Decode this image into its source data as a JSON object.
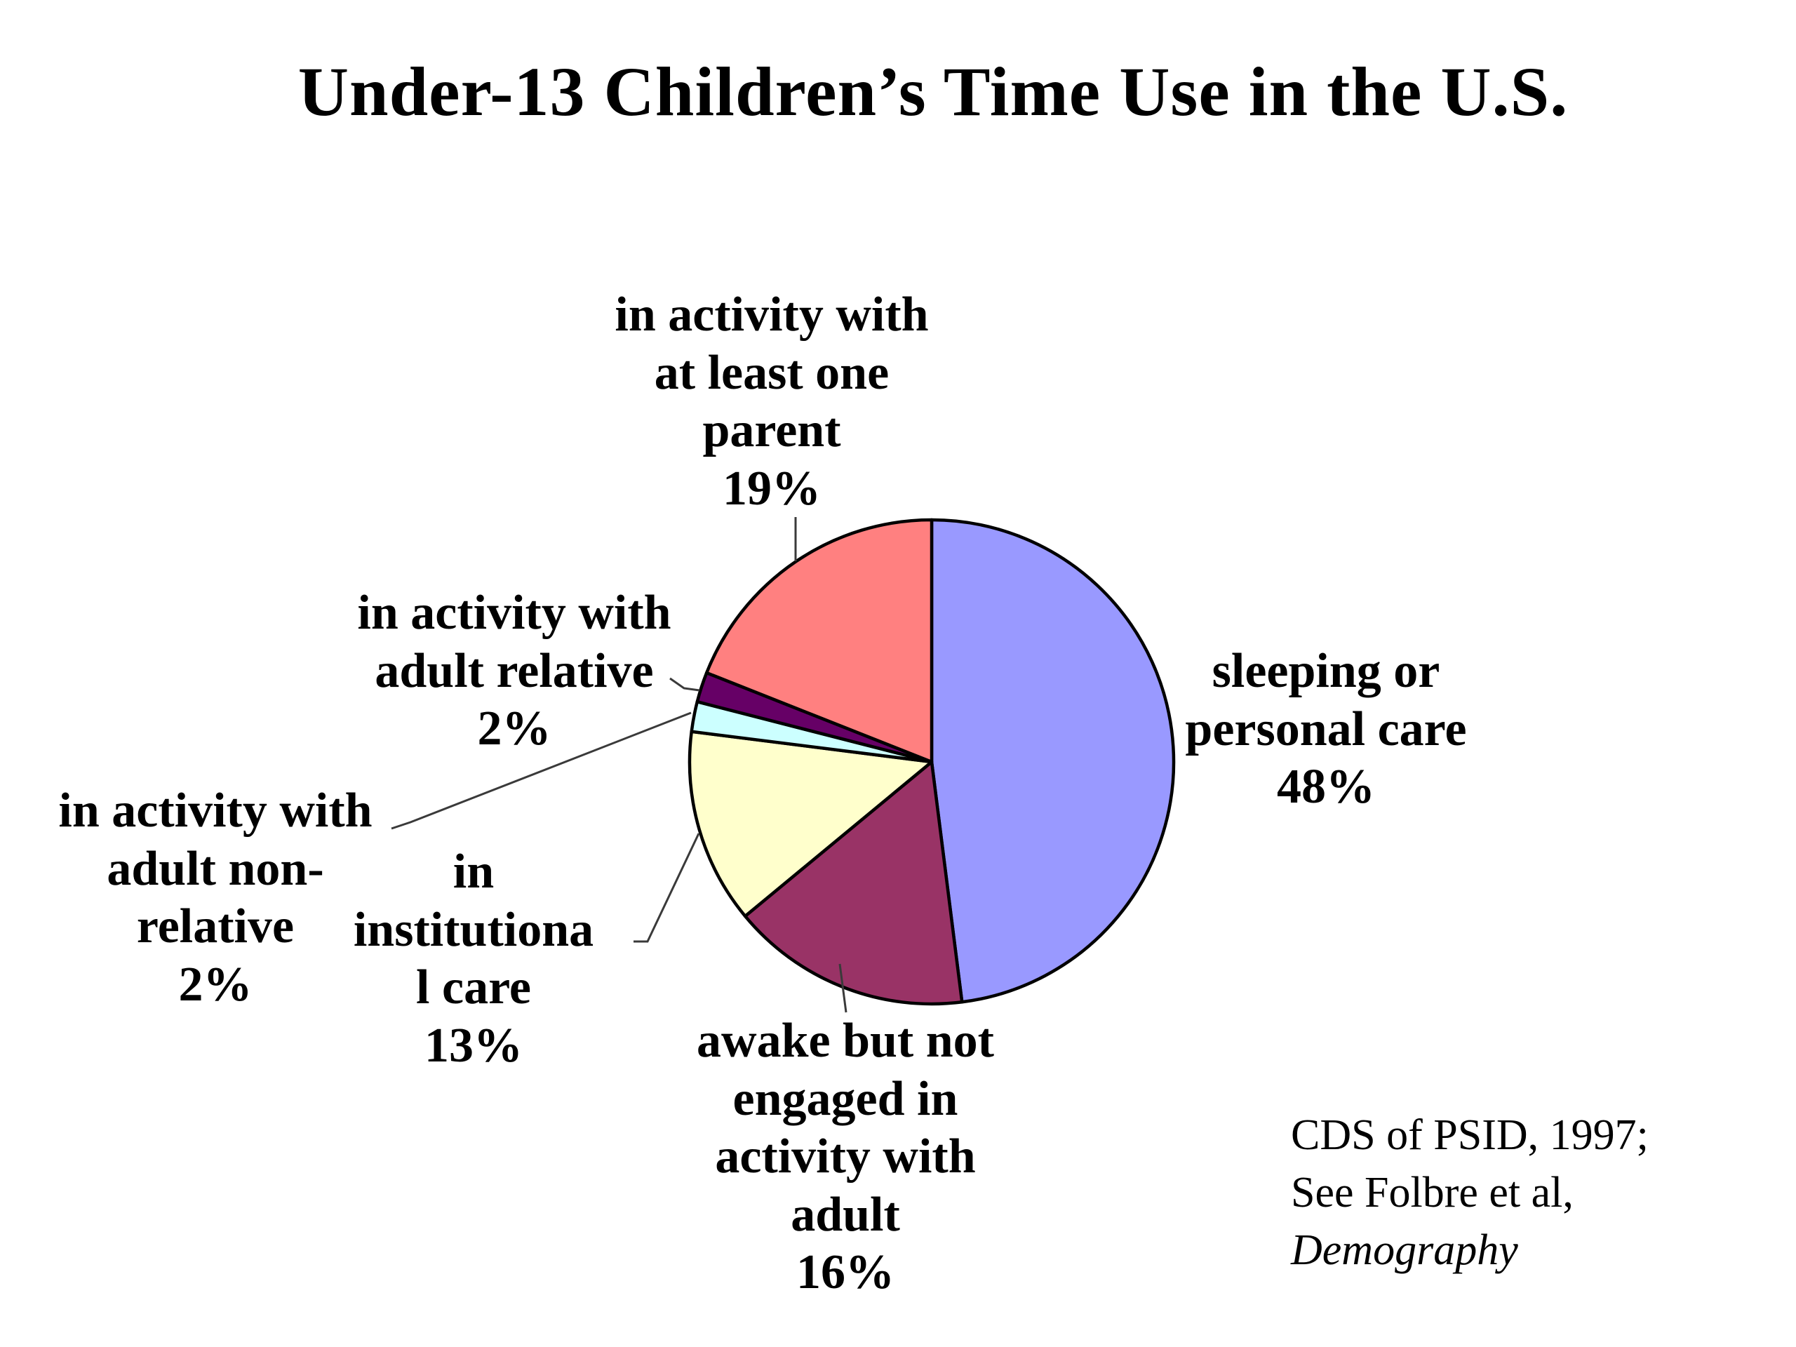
{
  "title": "Under-13 Children’s Time Use in the U.S.",
  "chart_data": {
    "type": "pie",
    "title": "Under-13 Children’s Time Use in the U.S.",
    "start_angle_deg": 0,
    "direction": "clockwise",
    "stroke_color": "#000000",
    "slices": [
      {
        "label": "sleeping or personal care",
        "value_pct": 48,
        "color": "#9999FF",
        "callout": "sleeping or\npersonal care\n48%"
      },
      {
        "label": "awake but not engaged in activity with adult",
        "value_pct": 16,
        "color": "#993366",
        "callout": "awake but not\nengaged in\nactivity with\nadult\n16%"
      },
      {
        "label": "in institutional care",
        "value_pct": 13,
        "color": "#FFFFCC",
        "callout": "in\ninstitutiona\nl care\n13%"
      },
      {
        "label": "in activity with adult non-relative",
        "value_pct": 2,
        "color": "#CCFFFF",
        "callout": "in activity with\nadult non-\nrelative\n2%"
      },
      {
        "label": "in activity with adult relative",
        "value_pct": 2,
        "color": "#660066",
        "callout": "in activity with\nadult relative\n2%"
      },
      {
        "label": "in activity with at least one parent",
        "value_pct": 19,
        "color": "#FF8080",
        "callout": "in activity with\nat least one\nparent\n19%"
      }
    ]
  },
  "citation": {
    "lines": [
      "CDS of PSID, 1997;",
      "See Folbre et al,",
      "Demography"
    ]
  }
}
